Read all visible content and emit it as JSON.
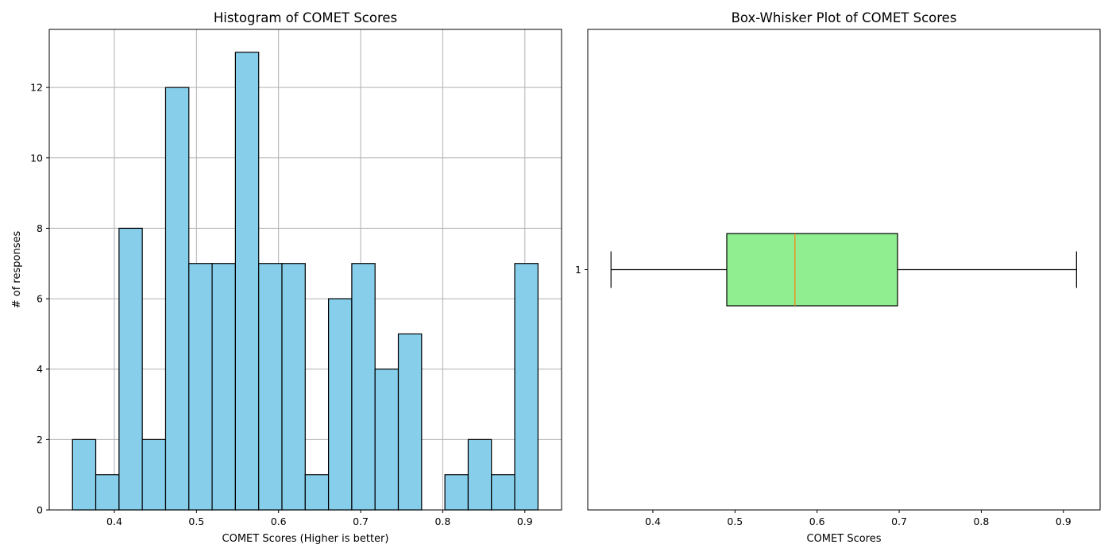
{
  "chart_data": [
    {
      "type": "bar",
      "subtype": "histogram",
      "title": "Histogram of COMET Scores",
      "xlabel": "COMET Scores (Higher is better)",
      "ylabel": "# of responses",
      "bin_start": 0.349,
      "bin_width": 0.02835,
      "values": [
        2,
        1,
        8,
        2,
        12,
        7,
        7,
        13,
        7,
        7,
        1,
        6,
        7,
        4,
        5,
        0,
        1,
        2,
        1,
        7
      ],
      "xlim": [
        0.3207,
        0.9447
      ],
      "ylim": [
        0,
        13.65
      ],
      "xticks": [
        "0.4",
        "0.5",
        "0.6",
        "0.7",
        "0.8",
        "0.9"
      ],
      "yticks": [
        "0",
        "2",
        "4",
        "6",
        "8",
        "10",
        "12"
      ],
      "grid": true,
      "bar_color": "#87CEEB",
      "edge_color": "#000000"
    },
    {
      "type": "box",
      "orientation": "horizontal",
      "title": "Box-Whisker Plot of COMET Scores",
      "xlabel": "COMET Scores",
      "category": "1",
      "whisker_low": 0.349,
      "q1": 0.49,
      "median": 0.573,
      "q3": 0.698,
      "whisker_high": 0.916,
      "xlim": [
        0.3207,
        0.9447
      ],
      "xticks": [
        "0.4",
        "0.5",
        "0.6",
        "0.7",
        "0.8",
        "0.9"
      ],
      "grid": false,
      "box_color": "#90EE90",
      "median_color": "#FF7F0E"
    }
  ]
}
